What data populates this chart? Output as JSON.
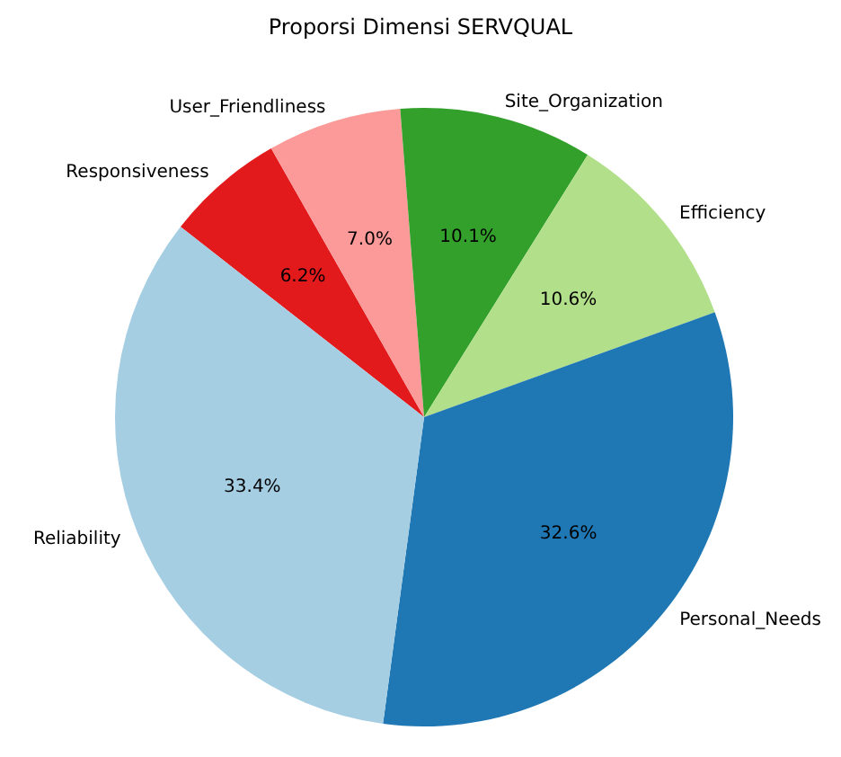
{
  "chart_data": {
    "type": "pie",
    "title": "Proporsi Dimensi SERVQUAL",
    "categories": [
      "Responsiveness",
      "User_Friendliness",
      "Site_Organization",
      "Efficiency",
      "Personal_Needs",
      "Reliability"
    ],
    "values": [
      6.2,
      7.0,
      10.1,
      10.6,
      32.6,
      33.4
    ],
    "colors": [
      "#e31a1c",
      "#fb9a99",
      "#33a02c",
      "#b2df8a",
      "#1f78b4",
      "#a6cee3"
    ],
    "value_labels": [
      "6.2%",
      "7.0%",
      "10.1%",
      "10.6%",
      "32.6%",
      "33.4%"
    ],
    "legend": false
  }
}
